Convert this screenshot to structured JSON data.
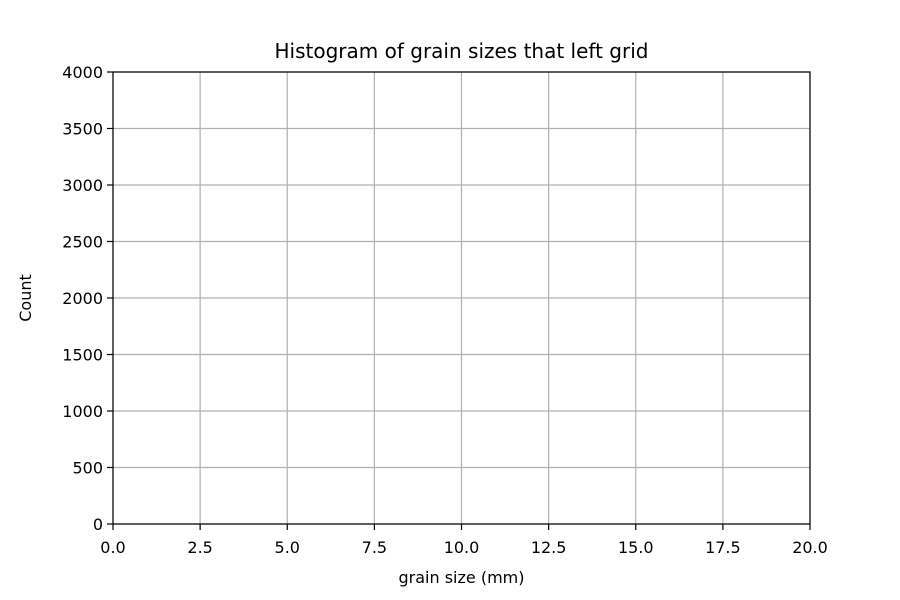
{
  "chart_data": {
    "type": "bar",
    "title": "Histogram of grain sizes that left grid",
    "xlabel": "grain size (mm)",
    "ylabel": "Count",
    "xlim": [
      0,
      20
    ],
    "ylim": [
      0,
      4000
    ],
    "x_ticks": [
      0,
      2.5,
      5,
      7.5,
      10,
      12.5,
      15,
      17.5,
      20
    ],
    "x_tick_labels": [
      "0.0",
      "2.5",
      "5.0",
      "7.5",
      "10.0",
      "12.5",
      "15.0",
      "17.5",
      "20.0"
    ],
    "y_ticks": [
      0,
      500,
      1000,
      1500,
      2000,
      2500,
      3000,
      3500,
      4000
    ],
    "y_tick_labels": [
      "0",
      "500",
      "1000",
      "1500",
      "2000",
      "2500",
      "3000",
      "3500",
      "4000"
    ],
    "grid": true,
    "bins": [],
    "values": [],
    "colors": {
      "grid": "#b0b0b0",
      "axes": "#000000",
      "background": "#ffffff"
    }
  }
}
